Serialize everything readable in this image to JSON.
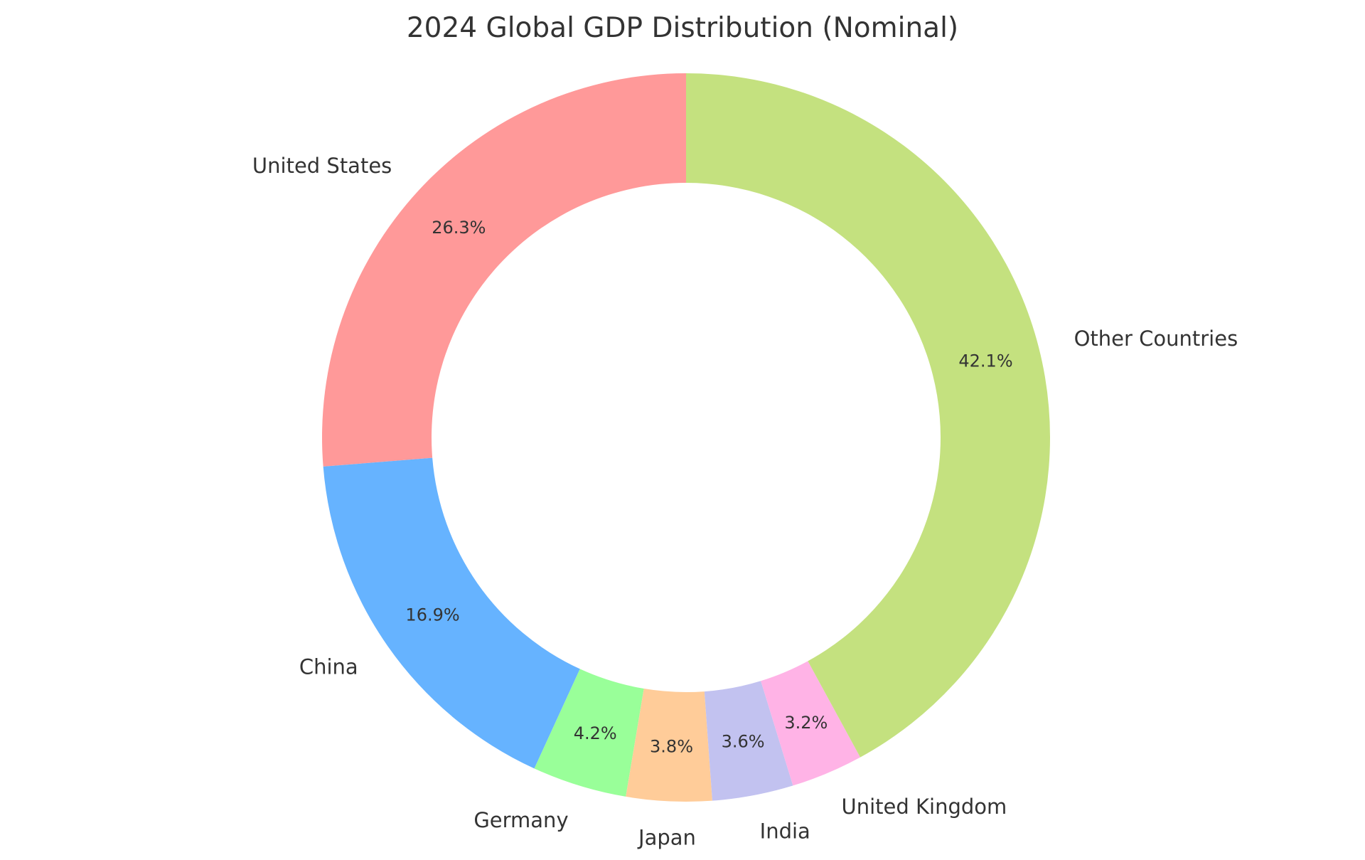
{
  "chart_data": {
    "type": "pie",
    "variant": "donut",
    "title": "2024 Global GDP Distribution (Nominal)",
    "start_angle_deg": 90,
    "direction": "counterclockwise",
    "slices": [
      {
        "label": "United States",
        "value": 26.3,
        "pct_label": "26.3%",
        "color": "#ff9999"
      },
      {
        "label": "China",
        "value": 16.9,
        "pct_label": "16.9%",
        "color": "#66b3ff"
      },
      {
        "label": "Germany",
        "value": 4.2,
        "pct_label": "4.2%",
        "color": "#99ff99"
      },
      {
        "label": "Japan",
        "value": 3.8,
        "pct_label": "3.8%",
        "color": "#ffcc99"
      },
      {
        "label": "India",
        "value": 3.6,
        "pct_label": "3.6%",
        "color": "#c2c2f0"
      },
      {
        "label": "United Kingdom",
        "value": 3.2,
        "pct_label": "3.2%",
        "color": "#ffb3e6"
      },
      {
        "label": "Other Countries",
        "value": 42.1,
        "pct_label": "42.1%",
        "color": "#c4e17f"
      }
    ]
  }
}
